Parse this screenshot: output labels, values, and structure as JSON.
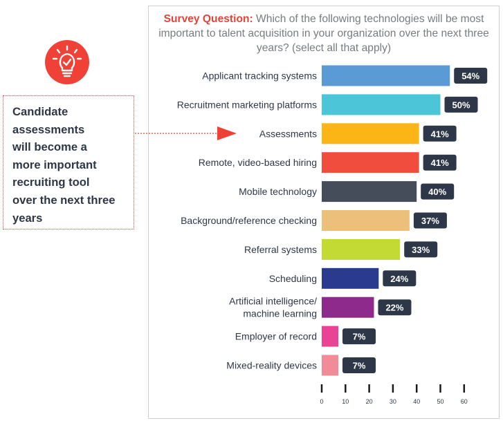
{
  "callout": {
    "lines": [
      "Candidate",
      "assessments",
      "will become a",
      "more important",
      "recruiting tool",
      "over the next three",
      "years"
    ]
  },
  "question": {
    "label": "Survey Question:",
    "text": "Which of the following technologies will be most important to talent acquisition in your organization over the next three years? (select all that apply)"
  },
  "colors": {
    "accent": "#ef4136",
    "value_box": "#2e3747",
    "text": "#2e3747"
  },
  "chart_data": {
    "type": "bar",
    "orientation": "horizontal",
    "categories": [
      [
        "Applicant tracking systems"
      ],
      [
        "Recruitment marketing platforms"
      ],
      [
        "Assessments"
      ],
      [
        "Remote, video-based hiring"
      ],
      [
        "Mobile technology"
      ],
      [
        "Background/reference checking"
      ],
      [
        "Referral systems"
      ],
      [
        "Scheduling"
      ],
      [
        "Artificial intelligence/",
        "machine learning"
      ],
      [
        "Employer of record"
      ],
      [
        "Mixed-reality devices"
      ]
    ],
    "values": [
      54,
      50,
      41,
      41,
      40,
      37,
      33,
      24,
      22,
      7,
      7
    ],
    "value_labels": [
      "54%",
      "50%",
      "41%",
      "41%",
      "40%",
      "37%",
      "33%",
      "24%",
      "22%",
      "7%",
      "7%"
    ],
    "bar_colors": [
      "#5b9bd5",
      "#4cc5d8",
      "#fbb514",
      "#f04d3f",
      "#454d5a",
      "#ecc07b",
      "#c3d934",
      "#2a3a8f",
      "#8e2a8b",
      "#ea4396",
      "#f08b97"
    ],
    "highlighted_category": "Assessments",
    "xlim": [
      0,
      60
    ],
    "xticks": [
      0,
      10,
      20,
      30,
      40,
      50,
      60
    ],
    "xtick_labels": [
      "0",
      "10",
      "20",
      "30",
      "40",
      "50",
      "60"
    ],
    "title": "",
    "xlabel": "",
    "ylabel": ""
  }
}
